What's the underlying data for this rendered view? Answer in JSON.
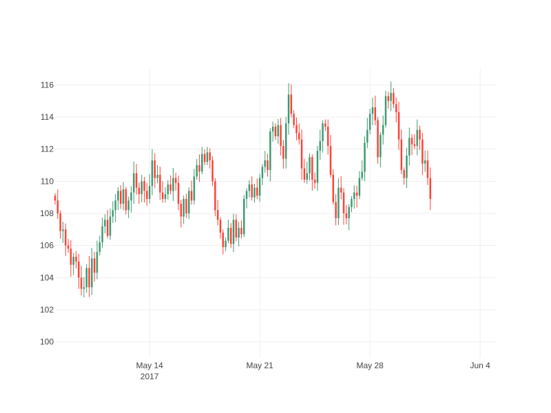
{
  "chart_data": {
    "type": "candlestick",
    "title": "",
    "xlabel": "",
    "ylabel": "",
    "x_start": "2017-05-08",
    "x_end": "2017-06-05",
    "ylim": [
      99,
      117
    ],
    "grid": true,
    "colors": {
      "increasing": "#3d9970",
      "decreasing": "#ff4136",
      "grid": "#eeeeee",
      "text": "#444444"
    },
    "x_ticks": [
      {
        "date": "2017-05-14",
        "label": "May 14",
        "sublabel": "2017"
      },
      {
        "date": "2017-05-21",
        "label": "May 21",
        "sublabel": ""
      },
      {
        "date": "2017-05-28",
        "label": "May 28",
        "sublabel": ""
      },
      {
        "date": "2017-06-04",
        "label": "Jun 4",
        "sublabel": ""
      }
    ],
    "y_ticks": [
      100,
      102,
      104,
      106,
      108,
      110,
      112,
      114,
      116
    ],
    "close_series": [
      {
        "date": "2017-05-08T00:00",
        "close": 108.8
      },
      {
        "date": "2017-05-08T04:00",
        "close": 108.0
      },
      {
        "date": "2017-05-08T08:00",
        "close": 106.9
      },
      {
        "date": "2017-05-08T12:00",
        "close": 107.0
      },
      {
        "date": "2017-05-08T16:00",
        "close": 106.0
      },
      {
        "date": "2017-05-08T20:00",
        "close": 105.8
      },
      {
        "date": "2017-05-09T00:00",
        "close": 104.8
      },
      {
        "date": "2017-05-09T04:00",
        "close": 105.3
      },
      {
        "date": "2017-05-09T08:00",
        "close": 105.0
      },
      {
        "date": "2017-05-09T12:00",
        "close": 104.0
      },
      {
        "date": "2017-05-09T16:00",
        "close": 103.3
      },
      {
        "date": "2017-05-09T20:00",
        "close": 103.4
      },
      {
        "date": "2017-05-10T00:00",
        "close": 104.6
      },
      {
        "date": "2017-05-10T04:00",
        "close": 103.4
      },
      {
        "date": "2017-05-10T08:00",
        "close": 105.2
      },
      {
        "date": "2017-05-10T12:00",
        "close": 104.3
      },
      {
        "date": "2017-05-10T16:00",
        "close": 105.6
      },
      {
        "date": "2017-05-10T20:00",
        "close": 106.2
      },
      {
        "date": "2017-05-11T00:00",
        "close": 107.2
      },
      {
        "date": "2017-05-11T04:00",
        "close": 107.6
      },
      {
        "date": "2017-05-11T08:00",
        "close": 106.6
      },
      {
        "date": "2017-05-11T12:00",
        "close": 107.8
      },
      {
        "date": "2017-05-11T16:00",
        "close": 108.2
      },
      {
        "date": "2017-05-11T20:00",
        "close": 108.8
      },
      {
        "date": "2017-05-12T00:00",
        "close": 109.4
      },
      {
        "date": "2017-05-12T04:00",
        "close": 108.6
      },
      {
        "date": "2017-05-12T08:00",
        "close": 109.5
      },
      {
        "date": "2017-05-12T12:00",
        "close": 108.2
      },
      {
        "date": "2017-05-12T16:00",
        "close": 108.8
      },
      {
        "date": "2017-05-12T20:00",
        "close": 109.3
      },
      {
        "date": "2017-05-13T00:00",
        "close": 110.5
      },
      {
        "date": "2017-05-13T04:00",
        "close": 109.6
      },
      {
        "date": "2017-05-13T08:00",
        "close": 109.2
      },
      {
        "date": "2017-05-13T12:00",
        "close": 110.0
      },
      {
        "date": "2017-05-13T16:00",
        "close": 109.4
      },
      {
        "date": "2017-05-13T20:00",
        "close": 108.9
      },
      {
        "date": "2017-05-14T00:00",
        "close": 109.7
      },
      {
        "date": "2017-05-14T04:00",
        "close": 111.3
      },
      {
        "date": "2017-05-14T08:00",
        "close": 110.2
      },
      {
        "date": "2017-05-14T12:00",
        "close": 110.4
      },
      {
        "date": "2017-05-14T16:00",
        "close": 109.3
      },
      {
        "date": "2017-05-14T20:00",
        "close": 108.9
      },
      {
        "date": "2017-05-15T00:00",
        "close": 109.2
      },
      {
        "date": "2017-05-15T04:00",
        "close": 109.8
      },
      {
        "date": "2017-05-15T08:00",
        "close": 109.4
      },
      {
        "date": "2017-05-15T12:00",
        "close": 110.2
      },
      {
        "date": "2017-05-15T16:00",
        "close": 109.9
      },
      {
        "date": "2017-05-15T20:00",
        "close": 108.6
      },
      {
        "date": "2017-05-16T00:00",
        "close": 107.8
      },
      {
        "date": "2017-05-16T04:00",
        "close": 108.9
      },
      {
        "date": "2017-05-16T08:00",
        "close": 108.0
      },
      {
        "date": "2017-05-16T12:00",
        "close": 109.4
      },
      {
        "date": "2017-05-16T16:00",
        "close": 108.8
      },
      {
        "date": "2017-05-16T20:00",
        "close": 110.3
      },
      {
        "date": "2017-05-17T00:00",
        "close": 111.0
      },
      {
        "date": "2017-05-17T04:00",
        "close": 110.6
      },
      {
        "date": "2017-05-17T08:00",
        "close": 111.7
      },
      {
        "date": "2017-05-17T12:00",
        "close": 111.2
      },
      {
        "date": "2017-05-17T16:00",
        "close": 111.8
      },
      {
        "date": "2017-05-17T20:00",
        "close": 111.3
      },
      {
        "date": "2017-05-18T00:00",
        "close": 110.0
      },
      {
        "date": "2017-05-18T04:00",
        "close": 108.2
      },
      {
        "date": "2017-05-18T08:00",
        "close": 107.6
      },
      {
        "date": "2017-05-18T12:00",
        "close": 106.8
      },
      {
        "date": "2017-05-18T16:00",
        "close": 105.9
      },
      {
        "date": "2017-05-18T20:00",
        "close": 106.3
      },
      {
        "date": "2017-05-19T00:00",
        "close": 107.1
      },
      {
        "date": "2017-05-19T04:00",
        "close": 106.1
      },
      {
        "date": "2017-05-19T08:00",
        "close": 107.6
      },
      {
        "date": "2017-05-19T12:00",
        "close": 106.5
      },
      {
        "date": "2017-05-19T16:00",
        "close": 107.1
      },
      {
        "date": "2017-05-19T20:00",
        "close": 106.7
      },
      {
        "date": "2017-05-20T00:00",
        "close": 108.9
      },
      {
        "date": "2017-05-20T04:00",
        "close": 109.4
      },
      {
        "date": "2017-05-20T08:00",
        "close": 109.8
      },
      {
        "date": "2017-05-20T12:00",
        "close": 109.0
      },
      {
        "date": "2017-05-20T16:00",
        "close": 109.6
      },
      {
        "date": "2017-05-20T20:00",
        "close": 109.1
      },
      {
        "date": "2017-05-21T00:00",
        "close": 110.2
      },
      {
        "date": "2017-05-21T04:00",
        "close": 110.9
      },
      {
        "date": "2017-05-21T08:00",
        "close": 111.3
      },
      {
        "date": "2017-05-21T12:00",
        "close": 110.7
      },
      {
        "date": "2017-05-21T16:00",
        "close": 113.1
      },
      {
        "date": "2017-05-21T20:00",
        "close": 113.4
      },
      {
        "date": "2017-05-22T00:00",
        "close": 112.8
      },
      {
        "date": "2017-05-22T04:00",
        "close": 113.5
      },
      {
        "date": "2017-05-22T08:00",
        "close": 112.2
      },
      {
        "date": "2017-05-22T12:00",
        "close": 111.4
      },
      {
        "date": "2017-05-22T16:00",
        "close": 113.6
      },
      {
        "date": "2017-05-22T20:00",
        "close": 115.4
      },
      {
        "date": "2017-05-23T00:00",
        "close": 114.2
      },
      {
        "date": "2017-05-23T04:00",
        "close": 113.5
      },
      {
        "date": "2017-05-23T08:00",
        "close": 113.0
      },
      {
        "date": "2017-05-23T12:00",
        "close": 112.6
      },
      {
        "date": "2017-05-23T16:00",
        "close": 110.8
      },
      {
        "date": "2017-05-23T20:00",
        "close": 110.1
      },
      {
        "date": "2017-05-24T00:00",
        "close": 110.5
      },
      {
        "date": "2017-05-24T04:00",
        "close": 111.5
      },
      {
        "date": "2017-05-24T08:00",
        "close": 110.1
      },
      {
        "date": "2017-05-24T12:00",
        "close": 109.9
      },
      {
        "date": "2017-05-24T16:00",
        "close": 111.9
      },
      {
        "date": "2017-05-24T20:00",
        "close": 112.5
      },
      {
        "date": "2017-05-25T00:00",
        "close": 113.6
      },
      {
        "date": "2017-05-25T04:00",
        "close": 113.4
      },
      {
        "date": "2017-05-25T08:00",
        "close": 112.2
      },
      {
        "date": "2017-05-25T12:00",
        "close": 110.4
      },
      {
        "date": "2017-05-25T16:00",
        "close": 108.7
      },
      {
        "date": "2017-05-25T20:00",
        "close": 107.7
      },
      {
        "date": "2017-05-26T00:00",
        "close": 109.6
      },
      {
        "date": "2017-05-26T04:00",
        "close": 109.3
      },
      {
        "date": "2017-05-26T08:00",
        "close": 108.0
      },
      {
        "date": "2017-05-26T12:00",
        "close": 107.7
      },
      {
        "date": "2017-05-26T16:00",
        "close": 108.4
      },
      {
        "date": "2017-05-26T20:00",
        "close": 108.9
      },
      {
        "date": "2017-05-27T00:00",
        "close": 109.3
      },
      {
        "date": "2017-05-27T04:00",
        "close": 109.1
      },
      {
        "date": "2017-05-27T08:00",
        "close": 110.2
      },
      {
        "date": "2017-05-27T12:00",
        "close": 110.6
      },
      {
        "date": "2017-05-27T16:00",
        "close": 112.4
      },
      {
        "date": "2017-05-27T20:00",
        "close": 113.2
      },
      {
        "date": "2017-05-28T00:00",
        "close": 114.2
      },
      {
        "date": "2017-05-28T04:00",
        "close": 114.6
      },
      {
        "date": "2017-05-28T08:00",
        "close": 113.8
      },
      {
        "date": "2017-05-28T12:00",
        "close": 111.5
      },
      {
        "date": "2017-05-28T16:00",
        "close": 112.9
      },
      {
        "date": "2017-05-28T20:00",
        "close": 113.5
      },
      {
        "date": "2017-05-29T00:00",
        "close": 115.3
      },
      {
        "date": "2017-05-29T04:00",
        "close": 115.0
      },
      {
        "date": "2017-05-29T08:00",
        "close": 115.5
      },
      {
        "date": "2017-05-29T12:00",
        "close": 114.8
      },
      {
        "date": "2017-05-29T16:00",
        "close": 114.3
      },
      {
        "date": "2017-05-29T20:00",
        "close": 112.6
      },
      {
        "date": "2017-05-30T00:00",
        "close": 110.7
      },
      {
        "date": "2017-05-30T04:00",
        "close": 110.2
      },
      {
        "date": "2017-05-30T08:00",
        "close": 111.6
      },
      {
        "date": "2017-05-30T12:00",
        "close": 112.7
      },
      {
        "date": "2017-05-30T16:00",
        "close": 112.3
      },
      {
        "date": "2017-05-30T20:00",
        "close": 112.2
      },
      {
        "date": "2017-05-31T00:00",
        "close": 113.2
      },
      {
        "date": "2017-05-31T04:00",
        "close": 112.6
      },
      {
        "date": "2017-05-31T08:00",
        "close": 111.1
      },
      {
        "date": "2017-05-31T12:00",
        "close": 111.3
      },
      {
        "date": "2017-05-31T16:00",
        "close": 110.2
      },
      {
        "date": "2017-05-31T20:00",
        "close": 108.9
      }
    ]
  }
}
